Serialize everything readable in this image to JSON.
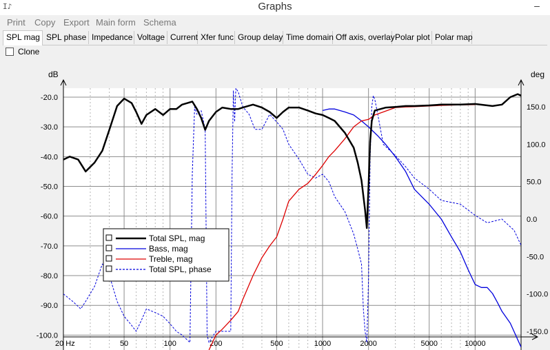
{
  "window": {
    "title": "Graphs",
    "icon_text": "I♪"
  },
  "menu": [
    "Print",
    "Copy",
    "Export",
    "Main form",
    "Schema"
  ],
  "tabs": [
    {
      "label": "SPL mag",
      "active": true
    },
    {
      "label": "SPL phase"
    },
    {
      "label": "Impedance"
    },
    {
      "label": "Voltage"
    },
    {
      "label": "Current"
    },
    {
      "label": "Xfer func"
    },
    {
      "label": "Group delay"
    },
    {
      "label": "Time domain"
    },
    {
      "label": "Off axis, overlay"
    },
    {
      "label": "Polar plot"
    },
    {
      "label": "Polar map"
    }
  ],
  "clone_label": "Clone",
  "clone_checked": false,
  "chart_data": {
    "type": "line",
    "left_unit": "dB",
    "right_unit": "deg",
    "x_scale": "log",
    "xlim": [
      20,
      20000
    ],
    "ylim": [
      -105,
      -17
    ],
    "y2lim": [
      -175,
      175
    ],
    "x_tick_labels": [
      {
        "v": 20,
        "t": "20 Hz"
      },
      {
        "v": 50,
        "t": "50"
      },
      {
        "v": 100,
        "t": "100"
      },
      {
        "v": 200,
        "t": "200"
      },
      {
        "v": 500,
        "t": "500"
      },
      {
        "v": 1000,
        "t": "1000"
      },
      {
        "v": 2000,
        "t": "2000"
      },
      {
        "v": 5000,
        "t": "5000"
      },
      {
        "v": 10000,
        "t": "10000"
      }
    ],
    "y_ticks": [
      -20,
      -30,
      -40,
      -50,
      -60,
      -70,
      -80,
      -90,
      -100
    ],
    "y_tick_labels": [
      "-20.0",
      "-30.0",
      "-40.0",
      "-50.0",
      "-60.0",
      "-70.0",
      "-80.0",
      "-90.0",
      "-100.0"
    ],
    "y2_ticks": [
      150,
      100,
      50,
      0,
      -50,
      -100,
      -150
    ],
    "y2_tick_labels": [
      "150.0",
      "100.0",
      "50.0",
      "0.0",
      "-50.0",
      "-100.0",
      "-150.0"
    ],
    "grid": true,
    "legend_position": "bottom-left",
    "series": [
      {
        "name": "Total SPL, mag",
        "axis": "left",
        "color": "#000000",
        "width": 2.5,
        "dash": "",
        "x": [
          20,
          22,
          25,
          28,
          32,
          36,
          40,
          45,
          50,
          56,
          60,
          65,
          70,
          80,
          90,
          100,
          110,
          120,
          130,
          140,
          150,
          160,
          170,
          180,
          200,
          220,
          250,
          280,
          300,
          350,
          400,
          450,
          500,
          550,
          600,
          700,
          800,
          900,
          1000,
          1100,
          1200,
          1400,
          1600,
          1700,
          1800,
          1900,
          1950,
          2000,
          2050,
          2100,
          2200,
          2400,
          2600,
          3000,
          3500,
          4000,
          5000,
          6000,
          8000,
          10000,
          13000,
          15000,
          17000,
          19000,
          20000
        ],
        "y": [
          -41,
          -40,
          -41,
          -45,
          -42,
          -38,
          -31,
          -23,
          -20.5,
          -22,
          -25,
          -29,
          -26,
          -24,
          -26,
          -24,
          -24,
          -22.5,
          -22,
          -21.5,
          -24,
          -27,
          -31,
          -28,
          -25,
          -23.5,
          -24,
          -24,
          -23.5,
          -22.5,
          -23.5,
          -25,
          -27,
          -25,
          -23.5,
          -23.5,
          -24.5,
          -25.5,
          -26,
          -27,
          -28,
          -32,
          -37,
          -42,
          -48,
          -58,
          -64,
          -50,
          -35,
          -28,
          -24.5,
          -24,
          -23.5,
          -23.3,
          -23,
          -23,
          -22.8,
          -22.5,
          -22.5,
          -22.3,
          -23,
          -22.5,
          -20,
          -19,
          -19.5
        ]
      },
      {
        "name": "Bass, mag",
        "axis": "left",
        "color": "#0000dd",
        "width": 1.3,
        "dash": "",
        "x": [
          1000,
          1100,
          1200,
          1400,
          1600,
          1800,
          2000,
          2300,
          2600,
          3000,
          3500,
          4000,
          5000,
          6000,
          7000,
          8000,
          9000,
          10000,
          11000,
          12000,
          13000,
          14000,
          15000,
          17000,
          20000
        ],
        "y": [
          -24.5,
          -24,
          -24,
          -25,
          -26,
          -28,
          -30,
          -33,
          -36,
          -40,
          -45,
          -51,
          -56,
          -61,
          -67,
          -72,
          -78,
          -83,
          -84,
          -84,
          -86,
          -89,
          -92,
          -96,
          -104
        ]
      },
      {
        "name": "Treble, mag",
        "axis": "left",
        "color": "#dd0000",
        "width": 1.3,
        "dash": "",
        "x": [
          180,
          200,
          220,
          250,
          280,
          300,
          350,
          400,
          450,
          500,
          550,
          600,
          700,
          800,
          900,
          1000,
          1100,
          1200,
          1400,
          1600,
          1800,
          2000,
          2200,
          2500,
          3000,
          3500,
          4000,
          5000,
          6000,
          8000,
          10000
        ],
        "y": [
          -105,
          -100,
          -98,
          -95,
          -92,
          -88,
          -80,
          -74,
          -70,
          -67,
          -61,
          -55,
          -51,
          -49,
          -46,
          -43,
          -40,
          -38,
          -34,
          -30,
          -28,
          -27.5,
          -26,
          -25,
          -23.5,
          -23.3,
          -23.2,
          -23,
          -22.8,
          -22.6,
          -22.5
        ]
      },
      {
        "name": "Total SPL, phase",
        "axis": "right",
        "color": "#0000dd",
        "width": 1,
        "dash": "3 2",
        "x": [
          20,
          23,
          26,
          28,
          32,
          36,
          40,
          45,
          50,
          55,
          60,
          65,
          70,
          80,
          90,
          100,
          110,
          120,
          135,
          140,
          145,
          150,
          160,
          170,
          175,
          180,
          200,
          220,
          250,
          255,
          260,
          265,
          270,
          280,
          290,
          300,
          330,
          360,
          400,
          450,
          500,
          550,
          600,
          700,
          800,
          900,
          1000,
          1100,
          1200,
          1400,
          1600,
          1700,
          1800,
          1850,
          1900,
          1950,
          2000,
          2050,
          2100,
          2150,
          2200,
          2300,
          2500,
          3000,
          3500,
          4000,
          5000,
          6000,
          8000,
          10000,
          12000,
          15000,
          18000,
          20000
        ],
        "y": [
          -100,
          -110,
          -120,
          -110,
          -90,
          -60,
          -75,
          -110,
          -130,
          -140,
          -150,
          -135,
          -120,
          -125,
          -130,
          -140,
          -150,
          -155,
          -165,
          60,
          150,
          140,
          145,
          120,
          -155,
          -165,
          -150,
          -150,
          -150,
          60,
          172,
          130,
          175,
          170,
          160,
          150,
          140,
          120,
          120,
          140,
          130,
          120,
          100,
          80,
          60,
          55,
          60,
          50,
          30,
          10,
          -20,
          -40,
          -60,
          -120,
          -150,
          -165,
          -80,
          80,
          150,
          165,
          160,
          140,
          100,
          85,
          70,
          55,
          40,
          25,
          20,
          5,
          -5,
          0,
          -15,
          -35
        ]
      }
    ]
  }
}
